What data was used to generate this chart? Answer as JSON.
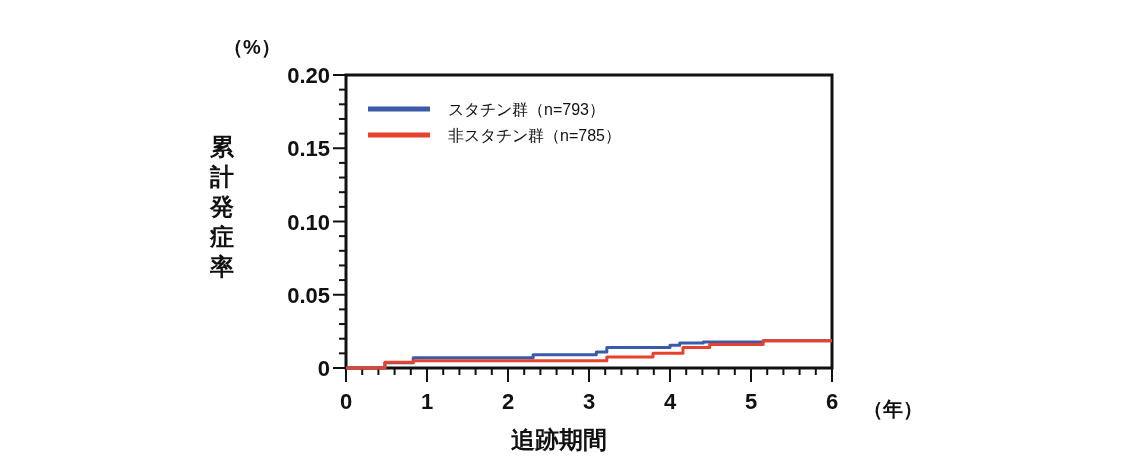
{
  "chart_data": {
    "type": "step",
    "xlabel": "追跡期間",
    "ylabel": "累計発症率",
    "annotations": [
      "（%）",
      "（年）"
    ],
    "xlim": [
      0,
      6
    ],
    "xticks": [
      0,
      1,
      2,
      3,
      4,
      5,
      6
    ],
    "ylim": [
      0,
      0.2
    ],
    "yticks": [
      0,
      {
        "value": 0.05,
        "label": "0.05"
      },
      {
        "value": 0.1,
        "label": "0.10"
      },
      {
        "value": 0.15,
        "label": "0.15"
      },
      {
        "value": 0.2,
        "label": "0.20"
      }
    ],
    "legend": "top left",
    "grid": false,
    "series": [
      {
        "name": "スタチン群（n=793）",
        "color": "#3a5ba8",
        "x": [
          0,
          0.48,
          0.83,
          2.31,
          3.09,
          3.22,
          4.0,
          4.12,
          4.41,
          5.15,
          6.0
        ],
        "values": [
          0,
          0.0035,
          0.007,
          0.009,
          0.011,
          0.014,
          0.0155,
          0.017,
          0.0177,
          0.0186,
          0.0186
        ]
      },
      {
        "name": "非スタチン群（n=785）",
        "color": "#e8412c",
        "x": [
          0,
          0.48,
          0.83,
          3.22,
          3.79,
          4.16,
          4.49,
          5.15,
          6.0
        ],
        "values": [
          0,
          0.004,
          0.005,
          0.0075,
          0.01,
          0.014,
          0.016,
          0.0186,
          0.0186
        ]
      }
    ]
  }
}
